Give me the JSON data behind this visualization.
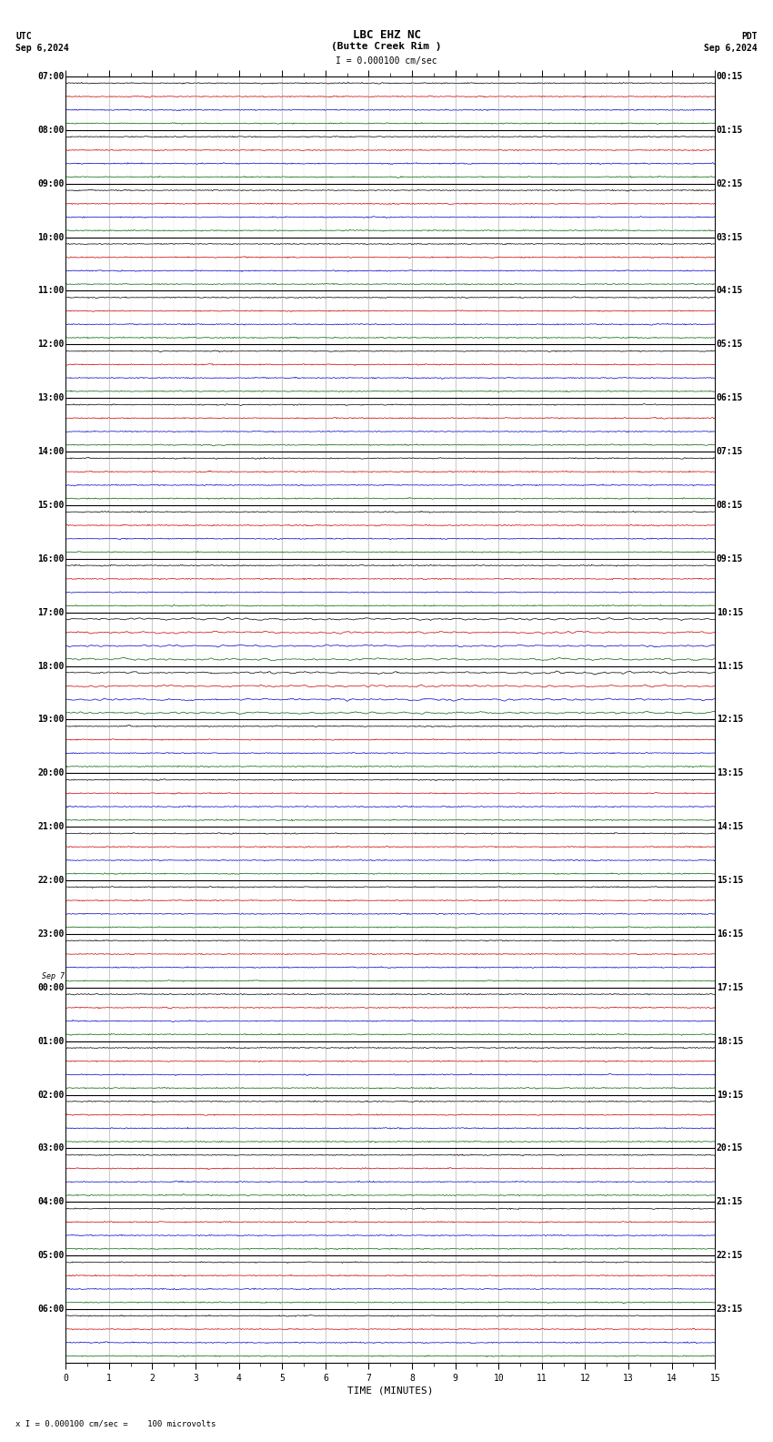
{
  "title_line1": "LBC EHZ NC",
  "title_line2": "(Butte Creek Rim )",
  "scale_label": "I = 0.000100 cm/sec",
  "utc_label": "UTC",
  "utc_date": "Sep 6,2024",
  "pdt_label": "PDT",
  "pdt_date": "Sep 6,2024",
  "xlabel": "TIME (MINUTES)",
  "bottom_note": "x I = 0.000100 cm/sec =    100 microvolts",
  "xmin": 0,
  "xmax": 15,
  "xticks": [
    0,
    1,
    2,
    3,
    4,
    5,
    6,
    7,
    8,
    9,
    10,
    11,
    12,
    13,
    14,
    15
  ],
  "fig_width": 8.5,
  "fig_height": 15.84,
  "dpi": 100,
  "row_colors_cycle": [
    "#000000",
    "#cc0000",
    "#0000cc",
    "#006600"
  ],
  "background_color": "#ffffff",
  "grid_color": "#888888",
  "label_fontsize": 7,
  "title_fontsize": 9,
  "axis_label_fontsize": 8,
  "left_labels": [
    "07:00",
    "08:00",
    "09:00",
    "10:00",
    "11:00",
    "12:00",
    "13:00",
    "14:00",
    "15:00",
    "16:00",
    "17:00",
    "18:00",
    "19:00",
    "20:00",
    "21:00",
    "22:00",
    "23:00",
    "00:00",
    "01:00",
    "02:00",
    "03:00",
    "04:00",
    "05:00",
    "06:00"
  ],
  "right_labels": [
    "00:15",
    "01:15",
    "02:15",
    "03:15",
    "04:15",
    "05:15",
    "06:15",
    "07:15",
    "08:15",
    "09:15",
    "10:15",
    "11:15",
    "12:15",
    "13:15",
    "14:15",
    "15:15",
    "16:15",
    "17:15",
    "18:15",
    "19:15",
    "20:15",
    "21:15",
    "22:15",
    "23:15"
  ],
  "sep7_row": 17,
  "total_rows": 96,
  "rows_per_hour": 4,
  "n_hours": 24,
  "noise_base": 0.06,
  "noise_spike_prob": 0.02,
  "noise_spike_amp": 0.25,
  "event_rows": [
    40,
    41,
    42,
    43,
    44,
    45,
    46,
    47
  ],
  "event_amp": 0.35,
  "linewidth": 0.5
}
